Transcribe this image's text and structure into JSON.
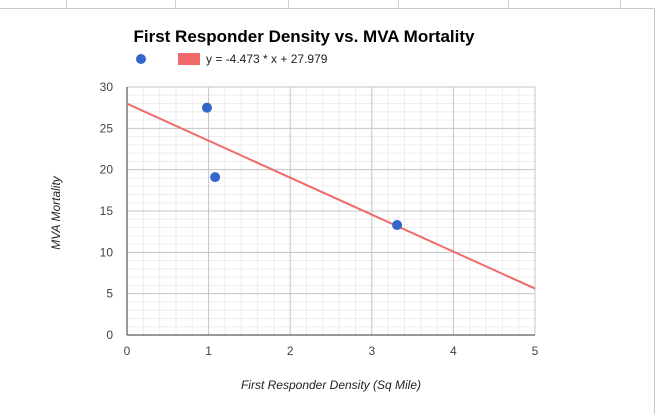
{
  "chart_data": {
    "type": "scatter",
    "title": "First Responder Density vs. MVA Mortality",
    "xlabel": "First Responder Density (Sq Mile)",
    "ylabel": "MVA Mortality",
    "xlim": [
      0,
      5
    ],
    "ylim": [
      0,
      30
    ],
    "x_ticks": [
      "0",
      "1",
      "2",
      "3",
      "4",
      "5"
    ],
    "y_ticks": [
      "0",
      "5",
      "10",
      "15",
      "20",
      "25",
      "30"
    ],
    "grid": true,
    "legend_position": "top",
    "series": [
      {
        "kind": "points",
        "color": "#3366cc",
        "points": [
          {
            "x": 0.98,
            "y": 27.5
          },
          {
            "x": 1.08,
            "y": 19.1
          },
          {
            "x": 3.31,
            "y": 13.3
          }
        ]
      },
      {
        "kind": "trendline",
        "name": "y = -4.473 * x + 27.979",
        "color": "#f06a6a",
        "slope": -4.473,
        "intercept": 27.979
      }
    ]
  }
}
